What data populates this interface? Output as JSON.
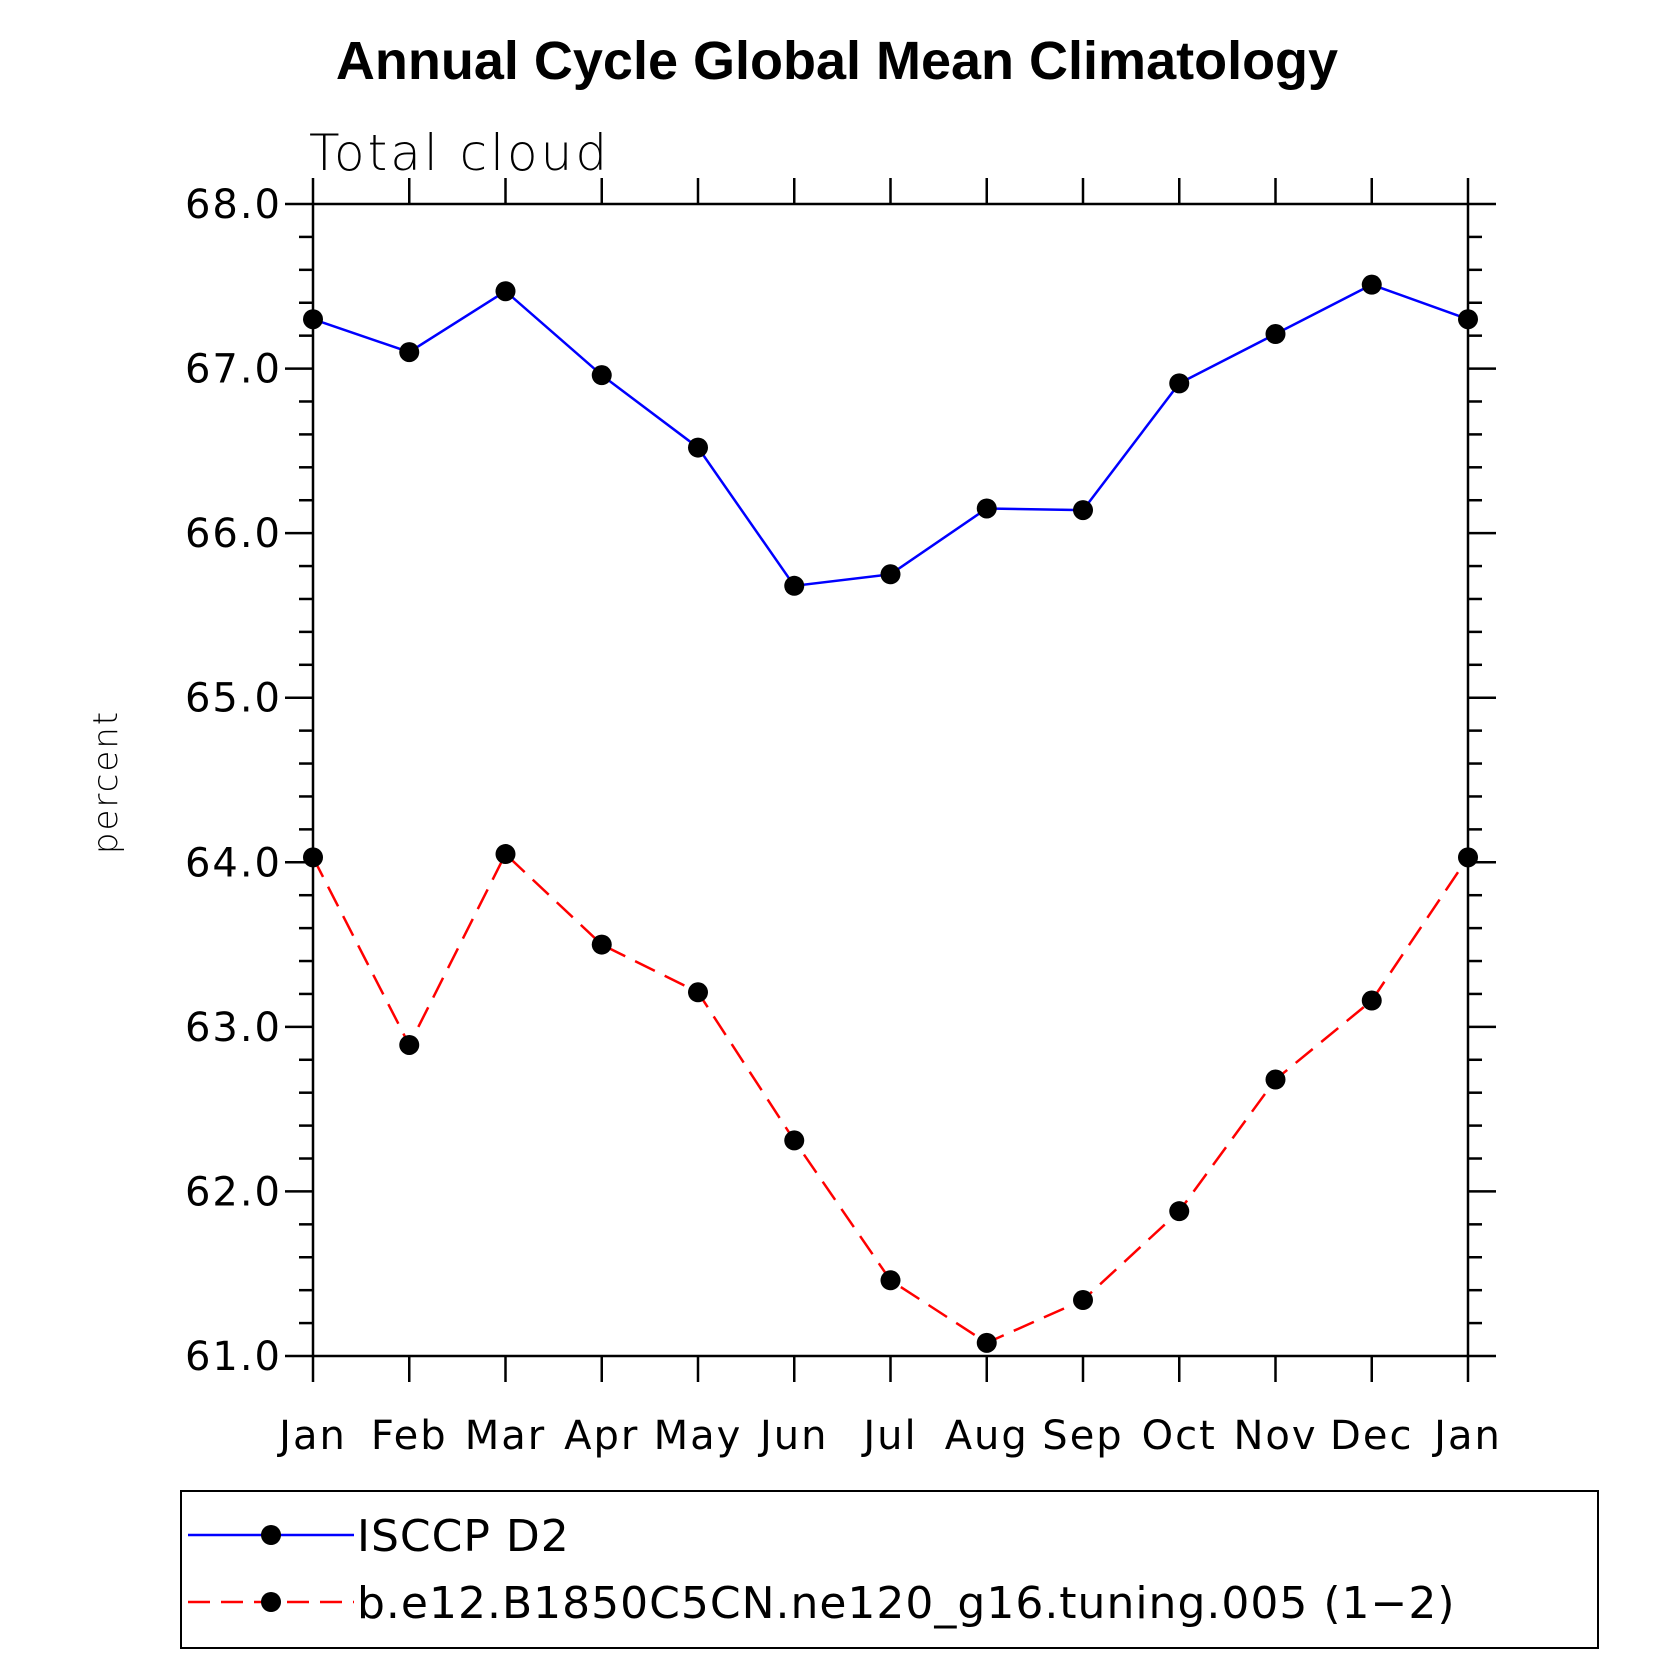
{
  "chart_data": {
    "type": "line",
    "title": "Annual Cycle Global Mean Climatology",
    "subtitle": "Total cloud",
    "ylabel": "percent",
    "xlabel": "",
    "ylim": [
      61.0,
      68.0
    ],
    "y_ticks": [
      "61.0",
      "62.0",
      "63.0",
      "64.0",
      "65.0",
      "66.0",
      "67.0",
      "68.0"
    ],
    "categories": [
      "Jan",
      "Feb",
      "Mar",
      "Apr",
      "May",
      "Jun",
      "Jul",
      "Aug",
      "Sep",
      "Oct",
      "Nov",
      "Dec",
      "Jan"
    ],
    "legend_position": "bottom",
    "series": [
      {
        "name": "ISCCP D2",
        "color": "#0000ff",
        "line_style": "solid",
        "marker": "filled-circle",
        "values": [
          67.3,
          67.1,
          67.47,
          66.96,
          66.52,
          65.68,
          65.75,
          66.15,
          66.14,
          66.91,
          67.21,
          67.51,
          67.3
        ]
      },
      {
        "name": "b.e12.B1850C5CN.ne120_g16.tuning.005 (1−2)",
        "color": "#ff0000",
        "line_style": "dashed",
        "marker": "filled-circle",
        "values": [
          64.03,
          62.89,
          64.05,
          63.5,
          63.21,
          62.31,
          61.46,
          61.08,
          61.34,
          61.88,
          62.68,
          63.16,
          64.03
        ]
      }
    ]
  }
}
